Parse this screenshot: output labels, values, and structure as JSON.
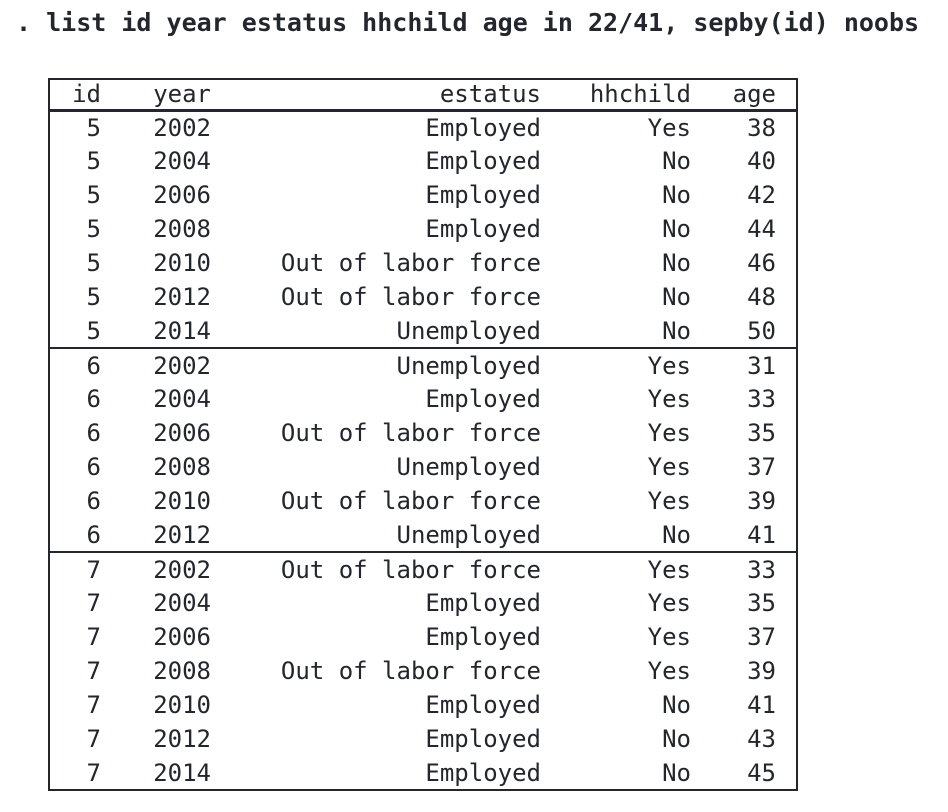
{
  "command": ". list id year estatus hhchild age in 22/41, sepby(id) noobs",
  "colors": {
    "text": "#23272d",
    "background": "#ffffff",
    "border": "#23272d"
  },
  "table": {
    "columns": [
      {
        "key": "id",
        "label": "id"
      },
      {
        "key": "year",
        "label": "year"
      },
      {
        "key": "estatus",
        "label": "estatus"
      },
      {
        "key": "hhchild",
        "label": "hhchild"
      },
      {
        "key": "age",
        "label": "age"
      }
    ],
    "groups": [
      {
        "group_id": "5",
        "rows": [
          [
            "5",
            "2002",
            "Employed",
            "Yes",
            "38"
          ],
          [
            "5",
            "2004",
            "Employed",
            "No",
            "40"
          ],
          [
            "5",
            "2006",
            "Employed",
            "No",
            "42"
          ],
          [
            "5",
            "2008",
            "Employed",
            "No",
            "44"
          ],
          [
            "5",
            "2010",
            "Out of labor force",
            "No",
            "46"
          ],
          [
            "5",
            "2012",
            "Out of labor force",
            "No",
            "48"
          ],
          [
            "5",
            "2014",
            "Unemployed",
            "No",
            "50"
          ]
        ]
      },
      {
        "group_id": "6",
        "rows": [
          [
            "6",
            "2002",
            "Unemployed",
            "Yes",
            "31"
          ],
          [
            "6",
            "2004",
            "Employed",
            "Yes",
            "33"
          ],
          [
            "6",
            "2006",
            "Out of labor force",
            "Yes",
            "35"
          ],
          [
            "6",
            "2008",
            "Unemployed",
            "Yes",
            "37"
          ],
          [
            "6",
            "2010",
            "Out of labor force",
            "Yes",
            "39"
          ],
          [
            "6",
            "2012",
            "Unemployed",
            "No",
            "41"
          ]
        ]
      },
      {
        "group_id": "7",
        "rows": [
          [
            "7",
            "2002",
            "Out of labor force",
            "Yes",
            "33"
          ],
          [
            "7",
            "2004",
            "Employed",
            "Yes",
            "35"
          ],
          [
            "7",
            "2006",
            "Employed",
            "Yes",
            "37"
          ],
          [
            "7",
            "2008",
            "Out of labor force",
            "Yes",
            "39"
          ],
          [
            "7",
            "2010",
            "Employed",
            "No",
            "41"
          ],
          [
            "7",
            "2012",
            "Employed",
            "No",
            "43"
          ],
          [
            "7",
            "2014",
            "Employed",
            "No",
            "45"
          ]
        ]
      }
    ]
  }
}
